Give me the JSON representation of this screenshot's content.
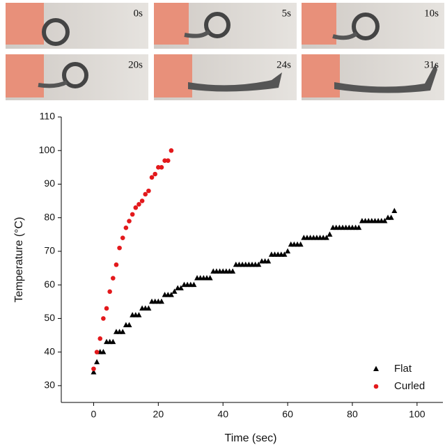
{
  "photo_labels": [
    "0s",
    "5s",
    "10s",
    "20s",
    "24s",
    "31s"
  ],
  "chart_data": {
    "type": "scatter",
    "x_label": "Time (sec)",
    "y_label": "Temperature (°C)",
    "xlim": [
      -10,
      108
    ],
    "ylim": [
      25,
      110
    ],
    "xticks": [
      0,
      20,
      40,
      60,
      80,
      100
    ],
    "yticks": [
      30,
      40,
      50,
      60,
      70,
      80,
      90,
      100,
      110
    ],
    "legend": "lower right",
    "series": [
      {
        "name": "Flat",
        "color": "#000000",
        "marker": "triangle",
        "x": [
          0,
          1,
          2,
          3,
          4,
          5,
          6,
          7,
          8,
          9,
          10,
          11,
          12,
          13,
          14,
          15,
          16,
          17,
          18,
          19,
          20,
          21,
          22,
          23,
          24,
          25,
          26,
          27,
          28,
          29,
          30,
          31,
          32,
          33,
          34,
          35,
          36,
          37,
          38,
          39,
          40,
          41,
          42,
          43,
          44,
          45,
          46,
          47,
          48,
          49,
          50,
          51,
          52,
          53,
          54,
          55,
          56,
          57,
          58,
          59,
          60,
          61,
          62,
          63,
          64,
          65,
          66,
          67,
          68,
          69,
          70,
          71,
          72,
          73,
          74,
          75,
          76,
          77,
          78,
          79,
          80,
          81,
          82,
          83,
          84,
          85,
          86,
          87,
          88,
          89,
          90,
          91,
          92,
          93
        ],
        "values": [
          34,
          37,
          40,
          40,
          43,
          43,
          43,
          46,
          46,
          46,
          48,
          48,
          51,
          51,
          51,
          53,
          53,
          53,
          55,
          55,
          55,
          55,
          57,
          57,
          57,
          58,
          59,
          59,
          60,
          60,
          60,
          60,
          62,
          62,
          62,
          62,
          62,
          64,
          64,
          64,
          64,
          64,
          64,
          64,
          66,
          66,
          66,
          66,
          66,
          66,
          66,
          66,
          67,
          67,
          67,
          69,
          69,
          69,
          69,
          69,
          70,
          72,
          72,
          72,
          72,
          74,
          74,
          74,
          74,
          74,
          74,
          74,
          74,
          75,
          77,
          77,
          77,
          77,
          77,
          77,
          77,
          77,
          77,
          79,
          79,
          79,
          79,
          79,
          79,
          79,
          79,
          80,
          80,
          82
        ]
      },
      {
        "name": "Curled",
        "color": "#e3191c",
        "marker": "circle",
        "x": [
          0,
          1,
          2,
          3,
          4,
          5,
          6,
          7,
          8,
          9,
          10,
          11,
          12,
          13,
          14,
          15,
          16,
          17,
          18,
          19,
          20,
          21,
          22,
          23,
          24
        ],
        "values": [
          35,
          40,
          44,
          50,
          53,
          58,
          62,
          66,
          71,
          74,
          77,
          79,
          81,
          83,
          84,
          85,
          87,
          88,
          92,
          93,
          95,
          95,
          97,
          97,
          100
        ]
      }
    ]
  }
}
